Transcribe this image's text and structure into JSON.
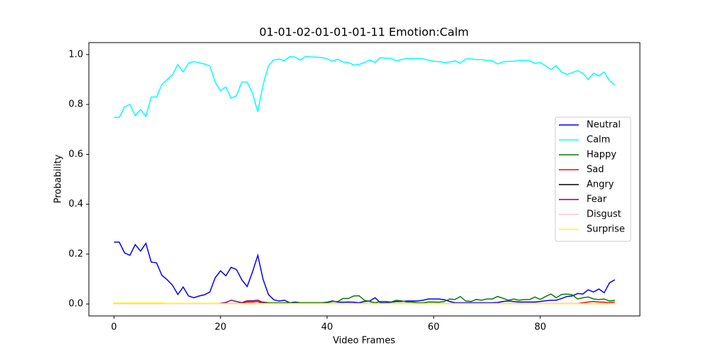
{
  "chart_data": {
    "type": "line",
    "title": "01-01-02-01-01-01-11 Emotion:Calm",
    "xlabel": "Video Frames",
    "ylabel": "Probability",
    "x": [
      0,
      1,
      2,
      3,
      4,
      5,
      6,
      7,
      8,
      9,
      10,
      11,
      12,
      13,
      14,
      15,
      16,
      17,
      18,
      19,
      20,
      21,
      22,
      23,
      24,
      25,
      26,
      27,
      28,
      29,
      30,
      31,
      32,
      33,
      34,
      35,
      36,
      37,
      38,
      39,
      40,
      41,
      42,
      43,
      44,
      45,
      46,
      47,
      48,
      49,
      50,
      51,
      52,
      53,
      54,
      55,
      56,
      57,
      58,
      59,
      60,
      61,
      62,
      63,
      64,
      65,
      66,
      67,
      68,
      69,
      70,
      71,
      72,
      73,
      74,
      75,
      76,
      77,
      78,
      79,
      80,
      81,
      82,
      83,
      84,
      85,
      86,
      87,
      88,
      89,
      90,
      91,
      92,
      93,
      94
    ],
    "xlim": [
      -4.7,
      98.7
    ],
    "xticks": [
      0,
      20,
      40,
      60,
      80
    ],
    "ylim": [
      -0.048,
      1.048
    ],
    "yticks": [
      {
        "value": 0,
        "label": "0.0"
      },
      0.2,
      0.4,
      0.6,
      0.8,
      {
        "value": 1,
        "label": "1.0"
      }
    ],
    "legend": "center right",
    "series": [
      {
        "name": "Neutral",
        "color": "#0000ff",
        "values": [
          0.248,
          0.248,
          0.205,
          0.195,
          0.238,
          0.212,
          0.243,
          0.168,
          0.165,
          0.115,
          0.097,
          0.075,
          0.038,
          0.068,
          0.032,
          0.025,
          0.032,
          0.037,
          0.048,
          0.105,
          0.133,
          0.113,
          0.147,
          0.138,
          0.097,
          0.07,
          0.128,
          0.195,
          0.098,
          0.038,
          0.017,
          0.012,
          0.015,
          0.005,
          0.008,
          0.005,
          0.005,
          0.005,
          0.005,
          0.005,
          0.007,
          0.012,
          0.008,
          0.007,
          0.008,
          0.007,
          0.005,
          0.01,
          0.012,
          0.025,
          0.005,
          0.005,
          0.007,
          0.01,
          0.01,
          0.012,
          0.012,
          0.012,
          0.015,
          0.02,
          0.02,
          0.02,
          0.017,
          0.01,
          0.005,
          0.005,
          0.005,
          0.005,
          0.005,
          0.005,
          0.005,
          0.005,
          0.006,
          0.01,
          0.012,
          0.01,
          0.008,
          0.008,
          0.008,
          0.008,
          0.01,
          0.013,
          0.015,
          0.015,
          0.022,
          0.03,
          0.032,
          0.042,
          0.04,
          0.057,
          0.048,
          0.06,
          0.045,
          0.085,
          0.097
        ]
      },
      {
        "name": "Calm",
        "color": "#00ffff",
        "values": [
          0.748,
          0.748,
          0.79,
          0.8,
          0.755,
          0.78,
          0.752,
          0.83,
          0.83,
          0.88,
          0.9,
          0.92,
          0.96,
          0.93,
          0.965,
          0.972,
          0.967,
          0.962,
          0.955,
          0.89,
          0.855,
          0.87,
          0.825,
          0.835,
          0.89,
          0.89,
          0.845,
          0.77,
          0.88,
          0.955,
          0.978,
          0.982,
          0.975,
          0.992,
          0.99,
          0.978,
          0.993,
          0.99,
          0.99,
          0.988,
          0.983,
          0.973,
          0.982,
          0.97,
          0.968,
          0.958,
          0.96,
          0.968,
          0.978,
          0.968,
          0.988,
          0.985,
          0.985,
          0.975,
          0.98,
          0.985,
          0.983,
          0.984,
          0.983,
          0.978,
          0.973,
          0.972,
          0.968,
          0.97,
          0.975,
          0.965,
          0.982,
          0.983,
          0.98,
          0.98,
          0.976,
          0.975,
          0.962,
          0.97,
          0.973,
          0.973,
          0.977,
          0.977,
          0.975,
          0.965,
          0.968,
          0.955,
          0.94,
          0.955,
          0.93,
          0.92,
          0.928,
          0.935,
          0.925,
          0.9,
          0.925,
          0.915,
          0.93,
          0.895,
          0.878
        ]
      },
      {
        "name": "Happy",
        "color": "#008000",
        "values": [
          0.002,
          0.002,
          0.002,
          0.002,
          0.002,
          0.002,
          0.002,
          0.002,
          0.002,
          0.002,
          0.002,
          0.002,
          0.002,
          0.002,
          0.002,
          0.002,
          0.002,
          0.002,
          0.002,
          0.002,
          0.002,
          0.002,
          0.002,
          0.002,
          0.002,
          0.002,
          0.002,
          0.002,
          0.008,
          0.005,
          0.005,
          0.005,
          0.005,
          0.005,
          0.005,
          0.005,
          0.005,
          0.005,
          0.005,
          0.005,
          0.005,
          0.01,
          0.01,
          0.022,
          0.022,
          0.032,
          0.033,
          0.015,
          0.01,
          0.005,
          0.01,
          0.01,
          0.008,
          0.015,
          0.012,
          0.008,
          0.008,
          0.005,
          0.005,
          0.008,
          0.008,
          0.007,
          0.01,
          0.02,
          0.018,
          0.03,
          0.012,
          0.01,
          0.018,
          0.015,
          0.02,
          0.02,
          0.03,
          0.023,
          0.015,
          0.02,
          0.015,
          0.018,
          0.018,
          0.028,
          0.018,
          0.03,
          0.04,
          0.025,
          0.038,
          0.04,
          0.037,
          0.02,
          0.025,
          0.028,
          0.02,
          0.018,
          0.02,
          0.012,
          0.015
        ]
      },
      {
        "name": "Sad",
        "color": "#ff0000",
        "values": [
          0.002,
          0.002,
          0.002,
          0.002,
          0.002,
          0.002,
          0.002,
          0.002,
          0.002,
          0.002,
          0.002,
          0.002,
          0.002,
          0.002,
          0.002,
          0.002,
          0.002,
          0.002,
          0.002,
          0.002,
          0.002,
          0.002,
          0.002,
          0.002,
          0.002,
          0.008,
          0.008,
          0.01,
          0.005,
          0.002,
          0.002,
          0.002,
          0.002,
          0.002,
          0.002,
          0.002,
          0.002,
          0.002,
          0.002,
          0.002,
          0.002,
          0.002,
          0.002,
          0.002,
          0.002,
          0.002,
          0.002,
          0.002,
          0.002,
          0.002,
          0.002,
          0.002,
          0.002,
          0.002,
          0.002,
          0.002,
          0.002,
          0.002,
          0.002,
          0.002,
          0.002,
          0.002,
          0.002,
          0.002,
          0.002,
          0.002,
          0.002,
          0.002,
          0.002,
          0.002,
          0.002,
          0.002,
          0.002,
          0.002,
          0.002,
          0.002,
          0.002,
          0.002,
          0.002,
          0.002,
          0.002,
          0.002,
          0.002,
          0.002,
          0.002,
          0.002,
          0.002,
          0.002,
          0.005,
          0.008,
          0.01,
          0.008,
          0.007,
          0.005,
          0.008
        ]
      },
      {
        "name": "Angry",
        "color": "#000000",
        "values": [
          0.001,
          0.001,
          0.001,
          0.001,
          0.001,
          0.001,
          0.001,
          0.001,
          0.001,
          0.001,
          0.001,
          0.001,
          0.001,
          0.001,
          0.001,
          0.001,
          0.001,
          0.001,
          0.001,
          0.001,
          0.001,
          0.001,
          0.001,
          0.001,
          0.001,
          0.001,
          0.001,
          0.001,
          0.001,
          0.001,
          0.001,
          0.001,
          0.001,
          0.001,
          0.001,
          0.001,
          0.001,
          0.001,
          0.001,
          0.001,
          0.001,
          0.001,
          0.001,
          0.001,
          0.001,
          0.001,
          0.001,
          0.001,
          0.001,
          0.001,
          0.001,
          0.001,
          0.001,
          0.001,
          0.001,
          0.001,
          0.001,
          0.001,
          0.001,
          0.001,
          0.001,
          0.001,
          0.001,
          0.001,
          0.001,
          0.001,
          0.001,
          0.001,
          0.001,
          0.001,
          0.001,
          0.001,
          0.001,
          0.001,
          0.001,
          0.001,
          0.001,
          0.001,
          0.001,
          0.001,
          0.001,
          0.001,
          0.001,
          0.001,
          0.001,
          0.001,
          0.001,
          0.001,
          0.001,
          0.001,
          0.001,
          0.001,
          0.001,
          0.001,
          0.001
        ]
      },
      {
        "name": "Fear",
        "color": "#800080",
        "values": [
          0.001,
          0.001,
          0.001,
          0.001,
          0.001,
          0.001,
          0.001,
          0.001,
          0.001,
          0.001,
          0.001,
          0.001,
          0.001,
          0.001,
          0.001,
          0.001,
          0.001,
          0.001,
          0.001,
          0.001,
          0.003,
          0.006,
          0.015,
          0.01,
          0.005,
          0.013,
          0.013,
          0.015,
          0.006,
          0.002,
          0.001,
          0.001,
          0.001,
          0.001,
          0.001,
          0.001,
          0.001,
          0.001,
          0.001,
          0.001,
          0.001,
          0.001,
          0.001,
          0.001,
          0.001,
          0.001,
          0.001,
          0.001,
          0.001,
          0.001,
          0.001,
          0.001,
          0.001,
          0.001,
          0.001,
          0.001,
          0.001,
          0.001,
          0.001,
          0.001,
          0.001,
          0.001,
          0.001,
          0.001,
          0.001,
          0.001,
          0.001,
          0.001,
          0.001,
          0.001,
          0.001,
          0.001,
          0.001,
          0.001,
          0.001,
          0.001,
          0.001,
          0.001,
          0.001,
          0.001,
          0.001,
          0.001,
          0.001,
          0.001,
          0.001,
          0.001,
          0.001,
          0.001,
          0.001,
          0.001,
          0.001,
          0.001,
          0.001,
          0.001,
          0.001
        ]
      },
      {
        "name": "Disgust",
        "color": "#ffc0cb",
        "values": [
          0.001,
          0.001,
          0.001,
          0.001,
          0.001,
          0.001,
          0.001,
          0.001,
          0.001,
          0.001,
          0.001,
          0.001,
          0.001,
          0.001,
          0.001,
          0.001,
          0.001,
          0.001,
          0.001,
          0.001,
          0.001,
          0.001,
          0.001,
          0.001,
          0.001,
          0.001,
          0.001,
          0.001,
          0.001,
          0.001,
          0.001,
          0.001,
          0.001,
          0.001,
          0.001,
          0.001,
          0.001,
          0.001,
          0.001,
          0.001,
          0.001,
          0.001,
          0.001,
          0.001,
          0.001,
          0.001,
          0.001,
          0.001,
          0.001,
          0.001,
          0.001,
          0.001,
          0.001,
          0.001,
          0.001,
          0.001,
          0.001,
          0.001,
          0.001,
          0.001,
          0.001,
          0.001,
          0.001,
          0.001,
          0.001,
          0.001,
          0.001,
          0.001,
          0.001,
          0.001,
          0.001,
          0.001,
          0.001,
          0.001,
          0.001,
          0.001,
          0.001,
          0.001,
          0.001,
          0.001,
          0.001,
          0.001,
          0.001,
          0.001,
          0.001,
          0.001,
          0.001,
          0.001,
          0.001,
          0.001,
          0.001,
          0.001,
          0.001,
          0.001,
          0.001
        ]
      },
      {
        "name": "Surprise",
        "color": "#ffff00",
        "values": [
          0.004,
          0.004,
          0.004,
          0.004,
          0.004,
          0.004,
          0.004,
          0.004,
          0.004,
          0.004,
          0.003,
          0.003,
          0.003,
          0.003,
          0.003,
          0.003,
          0.003,
          0.003,
          0.003,
          0.003,
          0.002,
          0.002,
          0.002,
          0.002,
          0.002,
          0.002,
          0.002,
          0.002,
          0.002,
          0.002,
          0.002,
          0.002,
          0.002,
          0.002,
          0.002,
          0.002,
          0.002,
          0.002,
          0.002,
          0.002,
          0.002,
          0.002,
          0.002,
          0.002,
          0.002,
          0.002,
          0.002,
          0.002,
          0.002,
          0.002,
          0.002,
          0.002,
          0.002,
          0.002,
          0.002,
          0.002,
          0.002,
          0.002,
          0.002,
          0.002,
          0.002,
          0.002,
          0.002,
          0.002,
          0.002,
          0.002,
          0.002,
          0.002,
          0.002,
          0.002,
          0.002,
          0.002,
          0.002,
          0.002,
          0.002,
          0.002,
          0.002,
          0.002,
          0.002,
          0.002,
          0.002,
          0.002,
          0.002,
          0.002,
          0.002,
          0.002,
          0.002,
          0.002,
          0.002,
          0.002,
          0.002,
          0.002,
          0.002,
          0.002,
          0.002
        ]
      }
    ]
  }
}
